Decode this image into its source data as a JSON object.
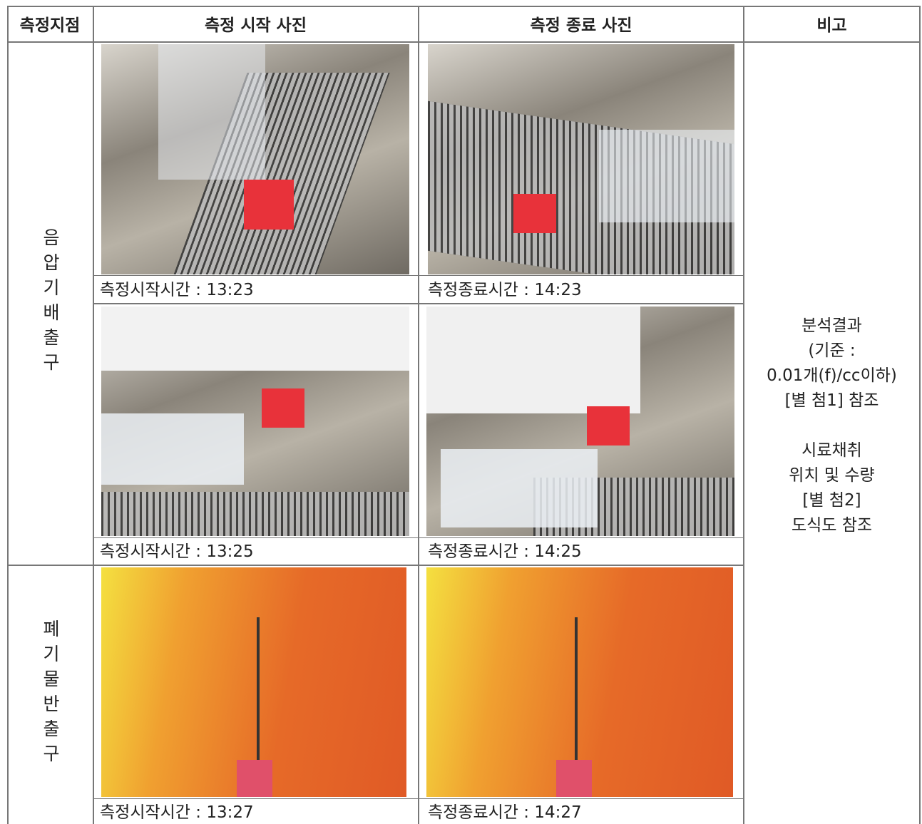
{
  "header": {
    "columns": [
      "측정지점",
      "측정 시작 사진",
      "측정 종료 사진",
      "비고"
    ]
  },
  "locations": [
    {
      "name": "음압기배출구",
      "rows": [
        {
          "start": "측정시작시간 : 13:23",
          "end": "측정종료시간 : 14:23"
        },
        {
          "start": "측정시작시간 : 13:25",
          "end": "측정종료시간 : 14:25"
        }
      ]
    },
    {
      "name": "폐기물반출구",
      "rows": [
        {
          "start": "측정시작시간 : 13:27",
          "end": "측정종료시간 : 14:27"
        }
      ]
    }
  ],
  "remarks": [
    [
      "분석결과",
      "(기준 :",
      "0.01개(f)/cc이하)",
      "[별 첨1] 참조"
    ],
    [
      "시료채취",
      "위치 및 수량",
      "[별 첨2]",
      "도식도 참조"
    ]
  ]
}
